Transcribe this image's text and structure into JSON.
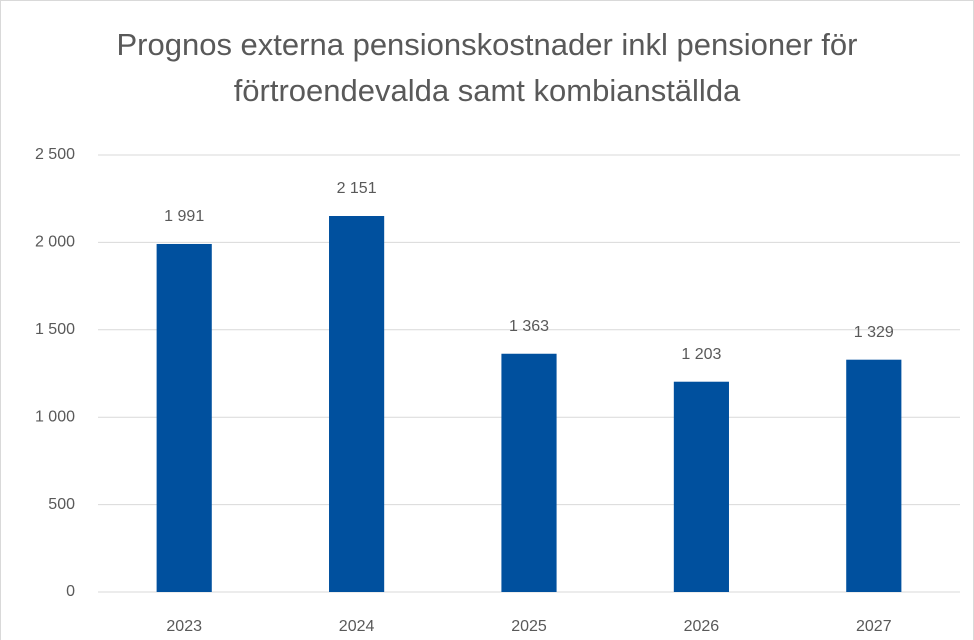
{
  "chart_data": {
    "type": "bar",
    "title": "Prognos externa pensionskostnader inkl pensioner för förtroendevalda samt kombianställda",
    "categories": [
      "2023",
      "2024",
      "2025",
      "2026",
      "2027"
    ],
    "values": [
      1991,
      2151,
      1363,
      1203,
      1329
    ],
    "value_labels": [
      "1 991",
      "2 151",
      "1 363",
      "1 203",
      "1 329"
    ],
    "color": "#00509e",
    "ylim": [
      0,
      2500
    ],
    "yticks": [
      0,
      500,
      {
        "value": 1000,
        "label": "1 000"
      },
      {
        "value": 1500,
        "label": "1 500"
      },
      {
        "value": 2000,
        "label": "2 000"
      },
      {
        "value": 2500,
        "label": "2 500"
      }
    ],
    "grid": true
  }
}
